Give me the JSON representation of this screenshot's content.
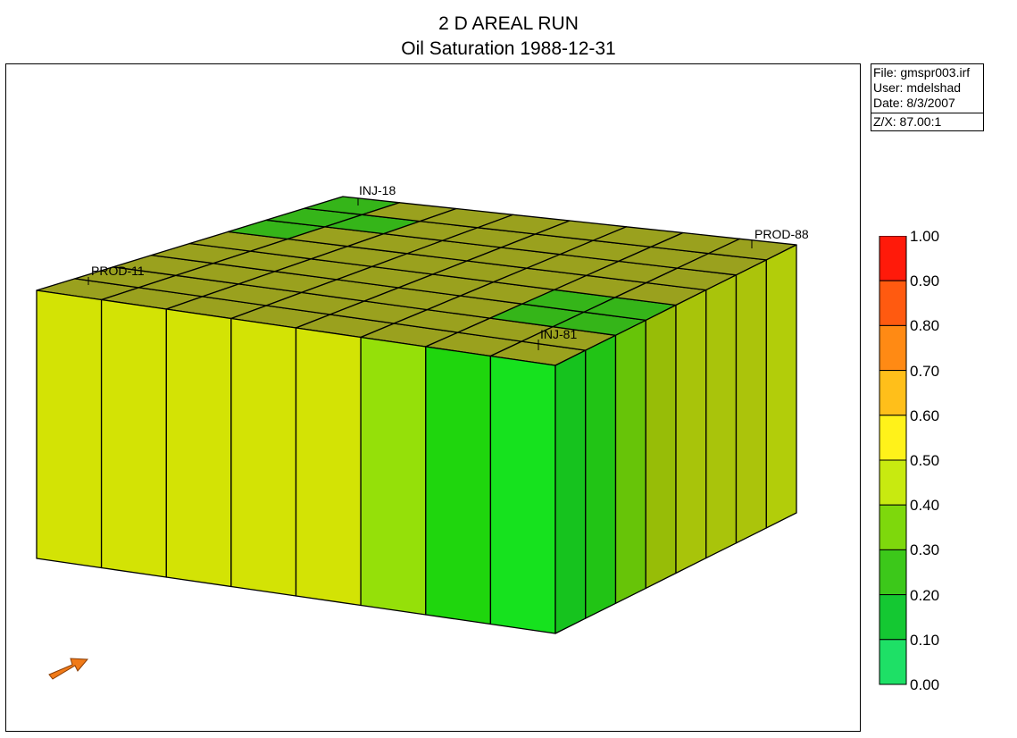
{
  "title": {
    "line1": "2 D AREAL RUN",
    "line2": "Oil Saturation 1988-12-31"
  },
  "info": {
    "file": "File: gmspr003.irf",
    "user": "User:  mdelshad",
    "date": "Date: 8/3/2007",
    "zx": "Z/X: 87.00:1"
  },
  "wells": {
    "inj18": "INJ-18",
    "inj81": "INJ-81",
    "prod11": "PROD-11",
    "prod88": "PROD-88"
  },
  "legend": {
    "labels": [
      "1.00",
      "0.90",
      "0.80",
      "0.70",
      "0.60",
      "0.50",
      "0.40",
      "0.30",
      "0.20",
      "0.10",
      "0.00"
    ],
    "colors": [
      "#ff1a0a",
      "#ff5a10",
      "#ff8a14",
      "#ffbf1a",
      "#fff21a",
      "#c8ea10",
      "#7ed80c",
      "#3cc81a",
      "#14c832",
      "#1ee066",
      "#2df39a"
    ]
  },
  "colors": {
    "top_base": "#9aa11e",
    "top_green": "#35b519",
    "front": [
      "#d3e305",
      "#d3e305",
      "#d3e305",
      "#d3e305",
      "#d3e305",
      "#95e009",
      "#1fd60d",
      "#16e21e"
    ],
    "right": [
      "#16c31e",
      "#21c415",
      "#67c408",
      "#97bd07",
      "#a8c40a",
      "#a9c40b",
      "#abc40b",
      "#b2cd0a"
    ],
    "arrow": "#f07a18"
  }
}
